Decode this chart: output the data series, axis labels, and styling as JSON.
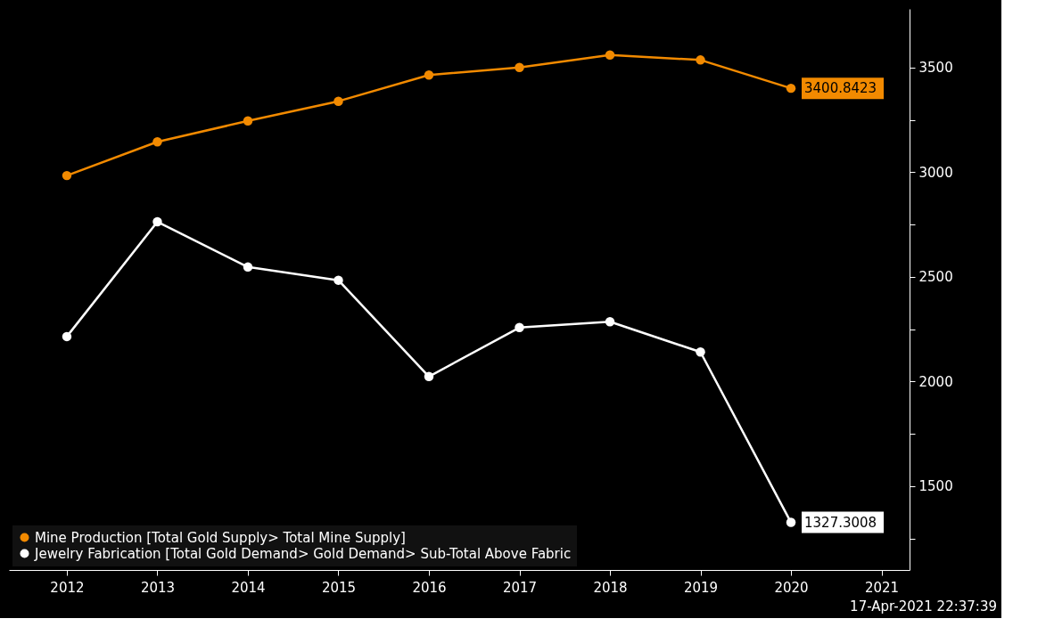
{
  "chart_data": {
    "type": "line",
    "x": [
      2012,
      2013,
      2014,
      2015,
      2016,
      2017,
      2018,
      2019,
      2020
    ],
    "series": [
      {
        "name": "Mine Production [Total Gold Supply> Total Mine Supply]",
        "color": "#f28a00",
        "values": [
          2984,
          3145,
          3245,
          3339,
          3464,
          3500,
          3560,
          3536,
          3400.8423
        ],
        "value_labels": [
          null,
          null,
          null,
          null,
          null,
          null,
          null,
          null,
          "3400.8423"
        ]
      },
      {
        "name": "Jewelry Fabrication [Total Gold Demand> Gold Demand> Sub-Total Above Fabric",
        "color": "#ffffff",
        "values": [
          2215,
          2763,
          2547,
          2484,
          2024,
          2258,
          2286,
          2141,
          1327.3008
        ],
        "value_labels": [
          null,
          null,
          null,
          null,
          null,
          null,
          null,
          null,
          "1327.3008"
        ]
      }
    ],
    "xlim": [
      2011.36,
      2021.31
    ],
    "xticks": [
      2012,
      2013,
      2014,
      2015,
      2016,
      2017,
      2018,
      2019,
      2020,
      2021
    ],
    "ylim": [
      1100,
      3780
    ],
    "yticks": [
      {
        "value": 1250,
        "label": null
      },
      1500,
      {
        "value": 1750,
        "label": null
      },
      2000,
      {
        "value": 2250,
        "label": null
      },
      2500,
      {
        "value": 2750,
        "label": null
      },
      3000,
      {
        "value": 3250,
        "label": null
      },
      3500
    ],
    "grid": false,
    "legend": "bottom left",
    "marker": "circle",
    "line_style": "solid",
    "annotations": [
      "17-Apr-2021 22:37:39"
    ]
  }
}
